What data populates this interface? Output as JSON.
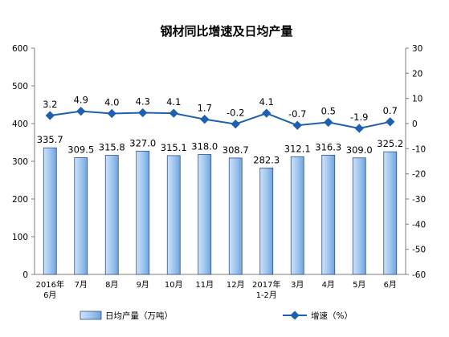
{
  "chart_data": {
    "type": "bar+line",
    "title": "钢材同比增速及日均产量",
    "categories": [
      "2016年\n6月",
      "7月",
      "8月",
      "9月",
      "10月",
      "11月",
      "12月",
      "2017年\n1-2月",
      "3月",
      "4月",
      "5月",
      "6月"
    ],
    "series": [
      {
        "name": "日均产量（万吨）",
        "type": "bar",
        "axis": "left",
        "values": [
          335.7,
          309.5,
          315.8,
          327.0,
          315.1,
          318.0,
          308.7,
          282.3,
          312.1,
          316.3,
          309.0,
          325.2
        ],
        "labels": [
          "335.7",
          "309.5",
          "315.8",
          "327.0",
          "315.1",
          "318.0",
          "308.7",
          "282.3",
          "312.1",
          "316.3",
          "309.0",
          "325.2"
        ]
      },
      {
        "name": "增速（%）",
        "type": "line",
        "axis": "right",
        "values": [
          3.2,
          4.9,
          4.0,
          4.3,
          4.1,
          1.7,
          -0.2,
          4.1,
          -0.7,
          0.5,
          -1.9,
          0.7
        ],
        "labels": [
          "3.2",
          "4.9",
          "4.0",
          "4.3",
          "4.1",
          "1.7",
          "-0.2",
          "4.1",
          "-0.7",
          "0.5",
          "-1.9",
          "0.7"
        ]
      }
    ],
    "y_left": {
      "min": 0,
      "max": 600,
      "ticks": [
        "0",
        "100",
        "200",
        "300",
        "400",
        "500",
        "600"
      ]
    },
    "y_right": {
      "min": -60,
      "max": 30,
      "ticks": [
        "-60",
        "-50",
        "-40",
        "-30",
        "-20",
        "-10",
        "0",
        "10",
        "20",
        "30"
      ]
    },
    "grid": false,
    "legend_position": "bottom",
    "colors": {
      "bar_fill_top": "#cfe2f7",
      "bar_fill": "#8fbcea",
      "bar_stroke": "#2f4f86",
      "line": "#1f5fb0",
      "text": "#000000",
      "axis": "#7f7f7f"
    }
  }
}
